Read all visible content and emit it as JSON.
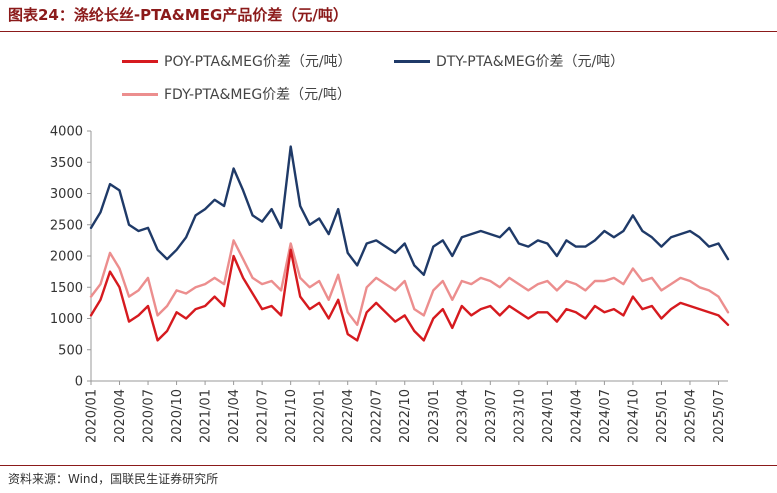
{
  "header": {
    "title": "图表24：涤纶长丝-PTA&MEG产品价差（元/吨）"
  },
  "footer": {
    "source": "资料来源：Wind，国联民生证券研究所"
  },
  "chart_data": {
    "type": "line",
    "title": "图表24：涤纶长丝-PTA&MEG产品价差（元/吨）",
    "xlabel": "",
    "ylabel": "",
    "ylim": [
      0,
      4000
    ],
    "yticks": [
      0,
      500,
      1000,
      1500,
      2000,
      2500,
      3000,
      3500,
      4000
    ],
    "xlim": [
      "2020-01",
      "2025-08"
    ],
    "xticks": [
      "2020/01",
      "2020/04",
      "2020/07",
      "2020/10",
      "2021/01",
      "2021/04",
      "2021/07",
      "2021/10",
      "2022/01",
      "2022/04",
      "2022/07",
      "2022/10",
      "2023/01",
      "2023/04",
      "2023/07",
      "2023/10",
      "2024/01",
      "2024/04",
      "2024/07",
      "2024/10",
      "2025/01",
      "2025/04",
      "2025/07"
    ],
    "grid": false,
    "legend_position": "top",
    "colors": {
      "poy": "#d61a1f",
      "dty": "#1f3a68",
      "fdy": "#ec8e8e",
      "frame": "#8b1a1a"
    },
    "series": [
      {
        "name": "POY-PTA&MEG价差（元/吨）",
        "color": "#d61a1f",
        "x": [
          "2020-01",
          "2020-02",
          "2020-03",
          "2020-04",
          "2020-05",
          "2020-06",
          "2020-07",
          "2020-08",
          "2020-09",
          "2020-10",
          "2020-11",
          "2020-12",
          "2021-01",
          "2021-02",
          "2021-03",
          "2021-04",
          "2021-05",
          "2021-06",
          "2021-07",
          "2021-08",
          "2021-09",
          "2021-10",
          "2021-11",
          "2021-12",
          "2022-01",
          "2022-02",
          "2022-03",
          "2022-04",
          "2022-05",
          "2022-06",
          "2022-07",
          "2022-08",
          "2022-09",
          "2022-10",
          "2022-11",
          "2022-12",
          "2023-01",
          "2023-02",
          "2023-03",
          "2023-04",
          "2023-05",
          "2023-06",
          "2023-07",
          "2023-08",
          "2023-09",
          "2023-10",
          "2023-11",
          "2023-12",
          "2024-01",
          "2024-02",
          "2024-03",
          "2024-04",
          "2024-05",
          "2024-06",
          "2024-07",
          "2024-08",
          "2024-09",
          "2024-10",
          "2024-11",
          "2024-12",
          "2025-01",
          "2025-02",
          "2025-03",
          "2025-04",
          "2025-05",
          "2025-06",
          "2025-07",
          "2025-08"
        ],
        "values": [
          1050,
          1300,
          1750,
          1500,
          950,
          1050,
          1200,
          650,
          800,
          1100,
          1000,
          1150,
          1200,
          1350,
          1200,
          2000,
          1650,
          1400,
          1150,
          1200,
          1050,
          2100,
          1350,
          1150,
          1250,
          1000,
          1300,
          750,
          650,
          1100,
          1250,
          1100,
          950,
          1050,
          800,
          650,
          1000,
          1150,
          850,
          1200,
          1050,
          1150,
          1200,
          1050,
          1200,
          1100,
          1000,
          1100,
          1100,
          950,
          1150,
          1100,
          1000,
          1200,
          1100,
          1150,
          1050,
          1350,
          1150,
          1200,
          1000,
          1150,
          1250,
          1200,
          1150,
          1100,
          1050,
          900
        ]
      },
      {
        "name": "DTY-PTA&MEG价差（元/吨）",
        "color": "#1f3a68",
        "x": [
          "2020-01",
          "2020-02",
          "2020-03",
          "2020-04",
          "2020-05",
          "2020-06",
          "2020-07",
          "2020-08",
          "2020-09",
          "2020-10",
          "2020-11",
          "2020-12",
          "2021-01",
          "2021-02",
          "2021-03",
          "2021-04",
          "2021-05",
          "2021-06",
          "2021-07",
          "2021-08",
          "2021-09",
          "2021-10",
          "2021-11",
          "2021-12",
          "2022-01",
          "2022-02",
          "2022-03",
          "2022-04",
          "2022-05",
          "2022-06",
          "2022-07",
          "2022-08",
          "2022-09",
          "2022-10",
          "2022-11",
          "2022-12",
          "2023-01",
          "2023-02",
          "2023-03",
          "2023-04",
          "2023-05",
          "2023-06",
          "2023-07",
          "2023-08",
          "2023-09",
          "2023-10",
          "2023-11",
          "2023-12",
          "2024-01",
          "2024-02",
          "2024-03",
          "2024-04",
          "2024-05",
          "2024-06",
          "2024-07",
          "2024-08",
          "2024-09",
          "2024-10",
          "2024-11",
          "2024-12",
          "2025-01",
          "2025-02",
          "2025-03",
          "2025-04",
          "2025-05",
          "2025-06",
          "2025-07",
          "2025-08"
        ],
        "values": [
          2450,
          2700,
          3150,
          3050,
          2500,
          2400,
          2450,
          2100,
          1950,
          2100,
          2300,
          2650,
          2750,
          2900,
          2800,
          3400,
          3050,
          2650,
          2550,
          2750,
          2450,
          3750,
          2800,
          2500,
          2600,
          2350,
          2750,
          2050,
          1850,
          2200,
          2250,
          2150,
          2050,
          2200,
          1850,
          1700,
          2150,
          2250,
          2000,
          2300,
          2350,
          2400,
          2350,
          2300,
          2450,
          2200,
          2150,
          2250,
          2200,
          2000,
          2250,
          2150,
          2150,
          2250,
          2400,
          2300,
          2400,
          2650,
          2400,
          2300,
          2150,
          2300,
          2350,
          2400,
          2300,
          2150,
          2200,
          1950
        ]
      },
      {
        "name": "FDY-PTA&MEG价差（元/吨）",
        "color": "#ec8e8e",
        "x": [
          "2020-01",
          "2020-02",
          "2020-03",
          "2020-04",
          "2020-05",
          "2020-06",
          "2020-07",
          "2020-08",
          "2020-09",
          "2020-10",
          "2020-11",
          "2020-12",
          "2021-01",
          "2021-02",
          "2021-03",
          "2021-04",
          "2021-05",
          "2021-06",
          "2021-07",
          "2021-08",
          "2021-09",
          "2021-10",
          "2021-11",
          "2021-12",
          "2022-01",
          "2022-02",
          "2022-03",
          "2022-04",
          "2022-05",
          "2022-06",
          "2022-07",
          "2022-08",
          "2022-09",
          "2022-10",
          "2022-11",
          "2022-12",
          "2023-01",
          "2023-02",
          "2023-03",
          "2023-04",
          "2023-05",
          "2023-06",
          "2023-07",
          "2023-08",
          "2023-09",
          "2023-10",
          "2023-11",
          "2023-12",
          "2024-01",
          "2024-02",
          "2024-03",
          "2024-04",
          "2024-05",
          "2024-06",
          "2024-07",
          "2024-08",
          "2024-09",
          "2024-10",
          "2024-11",
          "2024-12",
          "2025-01",
          "2025-02",
          "2025-03",
          "2025-04",
          "2025-05",
          "2025-06",
          "2025-07",
          "2025-08"
        ],
        "values": [
          1350,
          1550,
          2050,
          1800,
          1350,
          1450,
          1650,
          1050,
          1200,
          1450,
          1400,
          1500,
          1550,
          1650,
          1550,
          2250,
          1950,
          1650,
          1550,
          1600,
          1450,
          2200,
          1650,
          1500,
          1600,
          1300,
          1700,
          1100,
          900,
          1500,
          1650,
          1550,
          1450,
          1600,
          1150,
          1050,
          1450,
          1600,
          1300,
          1600,
          1550,
          1650,
          1600,
          1500,
          1650,
          1550,
          1450,
          1550,
          1600,
          1450,
          1600,
          1550,
          1450,
          1600,
          1600,
          1650,
          1550,
          1800,
          1600,
          1650,
          1450,
          1550,
          1650,
          1600,
          1500,
          1450,
          1350,
          1100
        ]
      }
    ]
  }
}
